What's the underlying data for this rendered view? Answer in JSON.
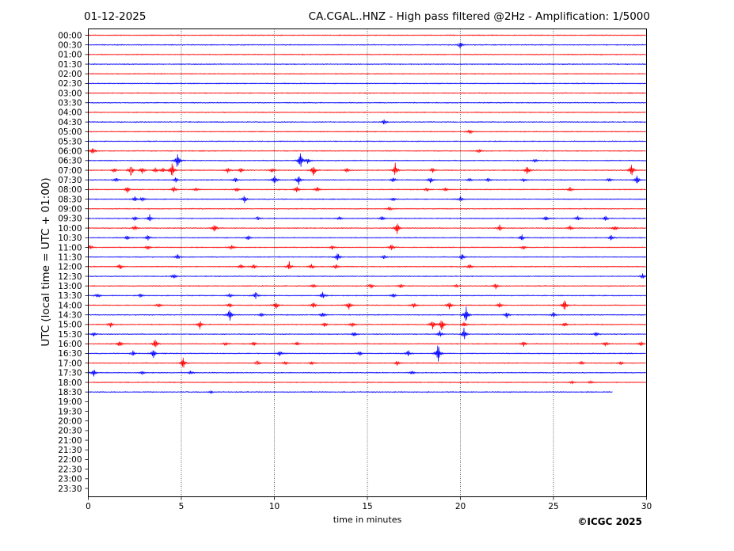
{
  "header": {
    "date": "01-12-2025",
    "title": "CA.CGAL..HNZ - High pass filtered @2Hz - Amplification: 1/5000"
  },
  "footer": {
    "copyright": "©ICGC 2025"
  },
  "chart_data": {
    "type": "line",
    "title": "CA.CGAL..HNZ - High pass filtered @2Hz - Amplification: 1/5000",
    "subtitle": "01-12-2025",
    "xlabel": "time in minutes",
    "ylabel": "UTC (local time = UTC + 01:00)",
    "xlim": [
      0,
      30
    ],
    "x_ticks": [
      0,
      5,
      10,
      15,
      20,
      25,
      30
    ],
    "vertical_gridlines": [
      5,
      10,
      15,
      20,
      25
    ],
    "row_labels": [
      "00:00",
      "00:30",
      "01:00",
      "01:30",
      "02:00",
      "02:30",
      "03:00",
      "03:30",
      "04:00",
      "04:30",
      "05:00",
      "05:30",
      "06:00",
      "06:30",
      "07:00",
      "07:30",
      "08:00",
      "08:30",
      "09:00",
      "09:30",
      "10:00",
      "10:30",
      "11:00",
      "11:30",
      "12:00",
      "12:30",
      "13:00",
      "13:30",
      "14:00",
      "14:30",
      "15:00",
      "15:30",
      "16:00",
      "16:30",
      "17:00",
      "17:30",
      "18:00",
      "18:30",
      "19:00",
      "19:30",
      "20:00",
      "20:30",
      "21:00",
      "21:30",
      "22:00",
      "22:30",
      "23:00",
      "23:30"
    ],
    "row_colors": [
      "#ff0000",
      "#0000ff"
    ],
    "recorded_rows": 38,
    "last_row_end_minute": 28.2,
    "events": [
      {
        "row": "00:30",
        "minute": 20.0,
        "amp": 0.6
      },
      {
        "row": "04:30",
        "minute": 15.9,
        "amp": 0.4
      },
      {
        "row": "05:00",
        "minute": 20.5,
        "amp": 0.4
      },
      {
        "row": "06:00",
        "minute": 0.25,
        "amp": 0.6
      },
      {
        "row": "06:00",
        "minute": 21.0,
        "amp": 0.3
      },
      {
        "row": "06:30",
        "minute": 4.8,
        "amp": 1.5
      },
      {
        "row": "06:30",
        "minute": 11.4,
        "amp": 1.5
      },
      {
        "row": "06:30",
        "minute": 11.8,
        "amp": 0.5
      },
      {
        "row": "06:30",
        "minute": 24.0,
        "amp": 0.3
      },
      {
        "row": "07:00",
        "minute": 1.4,
        "amp": 0.4
      },
      {
        "row": "07:00",
        "minute": 2.3,
        "amp": 0.9
      },
      {
        "row": "07:00",
        "minute": 2.9,
        "amp": 0.6
      },
      {
        "row": "07:00",
        "minute": 3.6,
        "amp": 0.4
      },
      {
        "row": "07:00",
        "minute": 4.0,
        "amp": 0.4
      },
      {
        "row": "07:00",
        "minute": 4.5,
        "amp": 1.4
      },
      {
        "row": "07:00",
        "minute": 7.5,
        "amp": 0.4
      },
      {
        "row": "07:00",
        "minute": 8.2,
        "amp": 0.4
      },
      {
        "row": "07:00",
        "minute": 9.9,
        "amp": 0.4
      },
      {
        "row": "07:00",
        "minute": 12.1,
        "amp": 1.1
      },
      {
        "row": "07:00",
        "minute": 13.9,
        "amp": 0.3
      },
      {
        "row": "07:00",
        "minute": 16.5,
        "amp": 1.0
      },
      {
        "row": "07:00",
        "minute": 18.5,
        "amp": 0.4
      },
      {
        "row": "07:00",
        "minute": 23.6,
        "amp": 0.8
      },
      {
        "row": "07:00",
        "minute": 29.2,
        "amp": 1.2
      },
      {
        "row": "07:30",
        "minute": 1.5,
        "amp": 0.4
      },
      {
        "row": "07:30",
        "minute": 4.7,
        "amp": 0.4
      },
      {
        "row": "07:30",
        "minute": 7.9,
        "amp": 0.4
      },
      {
        "row": "07:30",
        "minute": 10.0,
        "amp": 0.8
      },
      {
        "row": "07:30",
        "minute": 11.3,
        "amp": 0.8
      },
      {
        "row": "07:30",
        "minute": 16.4,
        "amp": 0.4
      },
      {
        "row": "07:30",
        "minute": 18.4,
        "amp": 0.5
      },
      {
        "row": "07:30",
        "minute": 20.5,
        "amp": 0.3
      },
      {
        "row": "07:30",
        "minute": 21.5,
        "amp": 0.3
      },
      {
        "row": "07:30",
        "minute": 23.4,
        "amp": 0.3
      },
      {
        "row": "07:30",
        "minute": 28.0,
        "amp": 0.3
      },
      {
        "row": "07:30",
        "minute": 29.5,
        "amp": 0.8
      },
      {
        "row": "08:00",
        "minute": 2.1,
        "amp": 0.6
      },
      {
        "row": "08:00",
        "minute": 4.6,
        "amp": 0.5
      },
      {
        "row": "08:00",
        "minute": 5.8,
        "amp": 0.3
      },
      {
        "row": "08:00",
        "minute": 8.0,
        "amp": 0.3
      },
      {
        "row": "08:00",
        "minute": 11.2,
        "amp": 0.5
      },
      {
        "row": "08:00",
        "minute": 12.3,
        "amp": 0.5
      },
      {
        "row": "08:00",
        "minute": 18.2,
        "amp": 0.3
      },
      {
        "row": "08:00",
        "minute": 19.2,
        "amp": 0.3
      },
      {
        "row": "08:00",
        "minute": 25.9,
        "amp": 0.4
      },
      {
        "row": "08:30",
        "minute": 2.5,
        "amp": 0.5
      },
      {
        "row": "08:30",
        "minute": 2.9,
        "amp": 0.4
      },
      {
        "row": "08:30",
        "minute": 8.4,
        "amp": 0.6
      },
      {
        "row": "08:30",
        "minute": 16.4,
        "amp": 0.3
      },
      {
        "row": "08:30",
        "minute": 20.0,
        "amp": 0.4
      },
      {
        "row": "09:00",
        "minute": 16.2,
        "amp": 0.3
      },
      {
        "row": "09:30",
        "minute": 2.5,
        "amp": 0.4
      },
      {
        "row": "09:30",
        "minute": 3.3,
        "amp": 0.6
      },
      {
        "row": "09:30",
        "minute": 9.1,
        "amp": 0.3
      },
      {
        "row": "09:30",
        "minute": 13.5,
        "amp": 0.3
      },
      {
        "row": "09:30",
        "minute": 15.8,
        "amp": 0.3
      },
      {
        "row": "09:30",
        "minute": 24.6,
        "amp": 0.4
      },
      {
        "row": "09:30",
        "minute": 26.3,
        "amp": 0.4
      },
      {
        "row": "09:30",
        "minute": 27.8,
        "amp": 0.4
      },
      {
        "row": "10:00",
        "minute": 2.5,
        "amp": 0.4
      },
      {
        "row": "10:00",
        "minute": 6.8,
        "amp": 0.7
      },
      {
        "row": "10:00",
        "minute": 16.6,
        "amp": 1.0
      },
      {
        "row": "10:00",
        "minute": 22.1,
        "amp": 0.6
      },
      {
        "row": "10:00",
        "minute": 25.9,
        "amp": 0.4
      },
      {
        "row": "10:00",
        "minute": 28.3,
        "amp": 0.4
      },
      {
        "row": "10:30",
        "minute": 2.1,
        "amp": 0.4
      },
      {
        "row": "10:30",
        "minute": 3.2,
        "amp": 0.4
      },
      {
        "row": "10:30",
        "minute": 8.6,
        "amp": 0.4
      },
      {
        "row": "10:30",
        "minute": 23.3,
        "amp": 0.5
      },
      {
        "row": "10:30",
        "minute": 28.1,
        "amp": 0.5
      },
      {
        "row": "11:00",
        "minute": 0.1,
        "amp": 0.4
      },
      {
        "row": "11:00",
        "minute": 3.2,
        "amp": 0.4
      },
      {
        "row": "11:00",
        "minute": 7.7,
        "amp": 0.4
      },
      {
        "row": "11:00",
        "minute": 13.1,
        "amp": 0.3
      },
      {
        "row": "11:00",
        "minute": 16.3,
        "amp": 0.5
      },
      {
        "row": "11:00",
        "minute": 23.4,
        "amp": 0.3
      },
      {
        "row": "11:30",
        "minute": 4.8,
        "amp": 0.4
      },
      {
        "row": "11:30",
        "minute": 13.4,
        "amp": 0.7
      },
      {
        "row": "11:30",
        "minute": 15.9,
        "amp": 0.4
      },
      {
        "row": "11:30",
        "minute": 20.1,
        "amp": 0.6
      },
      {
        "row": "12:00",
        "minute": 1.7,
        "amp": 0.5
      },
      {
        "row": "12:00",
        "minute": 8.2,
        "amp": 0.4
      },
      {
        "row": "12:00",
        "minute": 8.9,
        "amp": 0.4
      },
      {
        "row": "12:00",
        "minute": 10.8,
        "amp": 0.7
      },
      {
        "row": "12:00",
        "minute": 12.0,
        "amp": 0.4
      },
      {
        "row": "12:00",
        "minute": 13.3,
        "amp": 0.4
      },
      {
        "row": "12:00",
        "minute": 20.5,
        "amp": 0.4
      },
      {
        "row": "12:30",
        "minute": 4.6,
        "amp": 0.4
      },
      {
        "row": "12:30",
        "minute": 29.8,
        "amp": 0.4
      },
      {
        "row": "13:00",
        "minute": 12.1,
        "amp": 0.3
      },
      {
        "row": "13:00",
        "minute": 15.2,
        "amp": 0.4
      },
      {
        "row": "13:00",
        "minute": 16.8,
        "amp": 0.3
      },
      {
        "row": "13:00",
        "minute": 19.8,
        "amp": 0.3
      },
      {
        "row": "13:00",
        "minute": 21.9,
        "amp": 0.4
      },
      {
        "row": "13:30",
        "minute": 0.5,
        "amp": 0.4
      },
      {
        "row": "13:30",
        "minute": 2.8,
        "amp": 0.3
      },
      {
        "row": "13:30",
        "minute": 7.6,
        "amp": 0.4
      },
      {
        "row": "13:30",
        "minute": 9.0,
        "amp": 0.6
      },
      {
        "row": "13:30",
        "minute": 12.6,
        "amp": 0.6
      },
      {
        "row": "13:30",
        "minute": 16.4,
        "amp": 0.4
      },
      {
        "row": "14:00",
        "minute": 3.8,
        "amp": 0.3
      },
      {
        "row": "14:00",
        "minute": 7.6,
        "amp": 0.4
      },
      {
        "row": "14:00",
        "minute": 10.1,
        "amp": 0.6
      },
      {
        "row": "14:00",
        "minute": 12.1,
        "amp": 0.5
      },
      {
        "row": "14:00",
        "minute": 14.0,
        "amp": 0.7
      },
      {
        "row": "14:00",
        "minute": 17.5,
        "amp": 0.4
      },
      {
        "row": "14:00",
        "minute": 19.4,
        "amp": 0.6
      },
      {
        "row": "14:00",
        "minute": 22.1,
        "amp": 0.4
      },
      {
        "row": "14:00",
        "minute": 25.6,
        "amp": 1.1
      },
      {
        "row": "14:30",
        "minute": 7.6,
        "amp": 1.1
      },
      {
        "row": "14:30",
        "minute": 9.3,
        "amp": 0.4
      },
      {
        "row": "14:30",
        "minute": 12.6,
        "amp": 0.5
      },
      {
        "row": "14:30",
        "minute": 20.3,
        "amp": 1.4
      },
      {
        "row": "14:30",
        "minute": 22.5,
        "amp": 0.5
      },
      {
        "row": "14:30",
        "minute": 25.0,
        "amp": 0.4
      },
      {
        "row": "15:00",
        "minute": 1.2,
        "amp": 0.4
      },
      {
        "row": "15:00",
        "minute": 6.0,
        "amp": 0.6
      },
      {
        "row": "15:00",
        "minute": 12.7,
        "amp": 0.4
      },
      {
        "row": "15:00",
        "minute": 14.2,
        "amp": 0.4
      },
      {
        "row": "15:00",
        "minute": 18.5,
        "amp": 0.9
      },
      {
        "row": "15:00",
        "minute": 19.0,
        "amp": 1.0
      },
      {
        "row": "15:00",
        "minute": 20.2,
        "amp": 0.5
      },
      {
        "row": "15:00",
        "minute": 25.6,
        "amp": 0.4
      },
      {
        "row": "15:30",
        "minute": 0.3,
        "amp": 0.3
      },
      {
        "row": "15:30",
        "minute": 14.3,
        "amp": 0.5
      },
      {
        "row": "15:30",
        "minute": 18.9,
        "amp": 0.5
      },
      {
        "row": "15:30",
        "minute": 20.2,
        "amp": 1.0
      },
      {
        "row": "15:30",
        "minute": 27.3,
        "amp": 0.4
      },
      {
        "row": "16:00",
        "minute": 1.7,
        "amp": 0.6
      },
      {
        "row": "16:00",
        "minute": 3.6,
        "amp": 0.9
      },
      {
        "row": "16:00",
        "minute": 7.4,
        "amp": 0.3
      },
      {
        "row": "16:00",
        "minute": 8.9,
        "amp": 0.4
      },
      {
        "row": "16:00",
        "minute": 11.2,
        "amp": 0.3
      },
      {
        "row": "16:00",
        "minute": 23.4,
        "amp": 0.5
      },
      {
        "row": "16:00",
        "minute": 27.8,
        "amp": 0.4
      },
      {
        "row": "16:00",
        "minute": 29.7,
        "amp": 0.4
      },
      {
        "row": "16:30",
        "minute": 2.4,
        "amp": 0.4
      },
      {
        "row": "16:30",
        "minute": 3.5,
        "amp": 0.7
      },
      {
        "row": "16:30",
        "minute": 10.3,
        "amp": 0.5
      },
      {
        "row": "16:30",
        "minute": 14.6,
        "amp": 0.4
      },
      {
        "row": "16:30",
        "minute": 17.2,
        "amp": 0.5
      },
      {
        "row": "16:30",
        "minute": 18.8,
        "amp": 1.6
      },
      {
        "row": "17:00",
        "minute": 5.1,
        "amp": 1.0
      },
      {
        "row": "17:00",
        "minute": 9.1,
        "amp": 0.4
      },
      {
        "row": "17:00",
        "minute": 10.6,
        "amp": 0.3
      },
      {
        "row": "17:00",
        "minute": 12.0,
        "amp": 0.3
      },
      {
        "row": "17:00",
        "minute": 16.6,
        "amp": 0.4
      },
      {
        "row": "17:00",
        "minute": 26.5,
        "amp": 0.3
      },
      {
        "row": "17:00",
        "minute": 28.6,
        "amp": 0.3
      },
      {
        "row": "17:30",
        "minute": 0.3,
        "amp": 0.6
      },
      {
        "row": "17:30",
        "minute": 2.9,
        "amp": 0.3
      },
      {
        "row": "17:30",
        "minute": 5.5,
        "amp": 0.3
      },
      {
        "row": "17:30",
        "minute": 17.4,
        "amp": 0.3
      },
      {
        "row": "18:00",
        "minute": 26.0,
        "amp": 0.2
      },
      {
        "row": "18:00",
        "minute": 27.0,
        "amp": 0.2
      },
      {
        "row": "18:30",
        "minute": 6.6,
        "amp": 0.2
      }
    ],
    "grid": true
  }
}
